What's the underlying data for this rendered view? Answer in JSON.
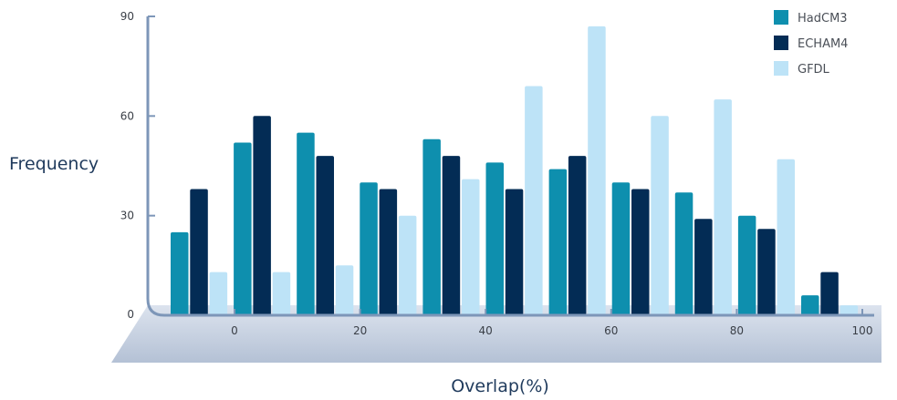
{
  "chart_data": {
    "type": "bar",
    "ylabel": "Frequency",
    "xlabel": "Overlap(%)",
    "ylim": [
      0,
      90
    ],
    "yticks": [
      0,
      30,
      60,
      90
    ],
    "xticks": [
      0,
      20,
      40,
      60,
      80,
      100
    ],
    "legend_position": "top-right",
    "grid": false,
    "groups": 11,
    "series": [
      {
        "name": "HadCM3",
        "color": "#0e8fae",
        "values": [
          25,
          52,
          55,
          40,
          53,
          46,
          44,
          40,
          37,
          30,
          6
        ]
      },
      {
        "name": "ECHAM4",
        "color": "#032c55",
        "values": [
          38,
          60,
          48,
          38,
          48,
          38,
          48,
          38,
          29,
          26,
          13
        ]
      },
      {
        "name": "GFDL",
        "color": "#bde3f7",
        "values": [
          13,
          13,
          15,
          30,
          41,
          69,
          87,
          60,
          65,
          47,
          3
        ]
      }
    ]
  }
}
